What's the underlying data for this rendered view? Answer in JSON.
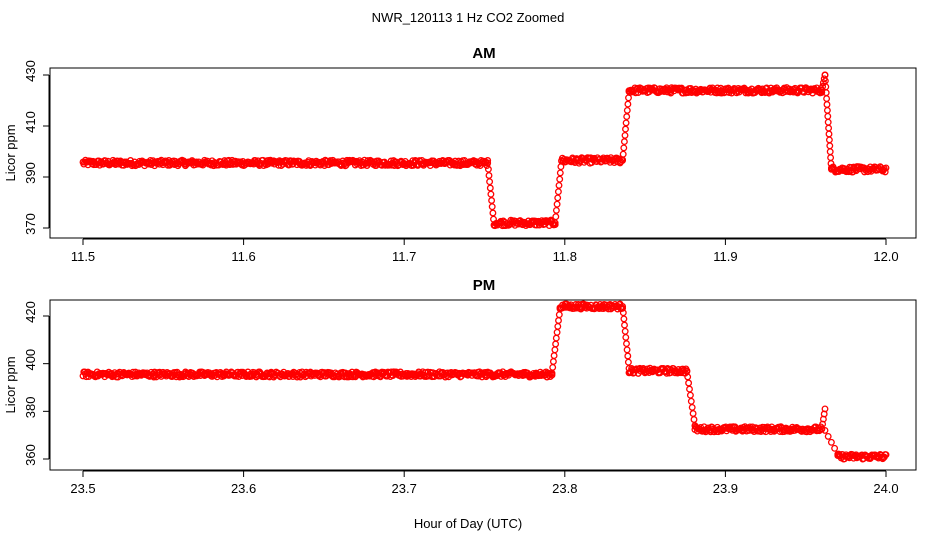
{
  "chart_data": {
    "type": "scatter",
    "title": "NWR_120113  1 Hz CO2 Zoomed",
    "xlabel": "Hour of Day (UTC)",
    "marker": "open circle",
    "series_color": "#ff0000",
    "panels": [
      {
        "title": "AM",
        "ylabel": "Licor ppm",
        "xlim": [
          11.5,
          12.0
        ],
        "ylim": [
          368,
          431
        ],
        "xticks": [
          "11.5",
          "11.6",
          "11.7",
          "11.8",
          "11.9",
          "12.0"
        ],
        "yticks": [
          "370",
          "390",
          "410",
          "430"
        ],
        "segments": [
          {
            "x0": 11.5,
            "x1": 11.752,
            "y0": 395.5,
            "y1": 395.5
          },
          {
            "x0": 11.752,
            "x1": 11.756,
            "y0": 395.5,
            "y1": 371
          },
          {
            "x0": 11.756,
            "x1": 11.794,
            "y0": 372,
            "y1": 372
          },
          {
            "x0": 11.794,
            "x1": 11.798,
            "y0": 372,
            "y1": 396.5
          },
          {
            "x0": 11.798,
            "x1": 11.836,
            "y0": 396.5,
            "y1": 396.5
          },
          {
            "x0": 11.836,
            "x1": 11.84,
            "y0": 396.5,
            "y1": 423.5
          },
          {
            "x0": 11.84,
            "x1": 11.96,
            "y0": 424,
            "y1": 424
          },
          {
            "x0": 11.96,
            "x1": 11.962,
            "y0": 424,
            "y1": 430
          },
          {
            "x0": 11.962,
            "x1": 11.966,
            "y0": 430,
            "y1": 393
          },
          {
            "x0": 11.966,
            "x1": 12.0,
            "y0": 393,
            "y1": 393
          }
        ]
      },
      {
        "title": "PM",
        "ylabel": "Licor ppm",
        "xlim": [
          23.5,
          24.0
        ],
        "ylim": [
          357,
          429
        ],
        "xticks": [
          "23.5",
          "23.6",
          "23.7",
          "23.8",
          "23.9",
          "24.0"
        ],
        "yticks": [
          "360",
          "380",
          "400",
          "420"
        ],
        "segments": [
          {
            "x0": 23.5,
            "x1": 23.792,
            "y0": 395.5,
            "y1": 395.5
          },
          {
            "x0": 23.792,
            "x1": 23.797,
            "y0": 396,
            "y1": 423
          },
          {
            "x0": 23.797,
            "x1": 23.836,
            "y0": 424,
            "y1": 424
          },
          {
            "x0": 23.836,
            "x1": 23.84,
            "y0": 424,
            "y1": 398
          },
          {
            "x0": 23.84,
            "x1": 23.876,
            "y0": 397,
            "y1": 397
          },
          {
            "x0": 23.876,
            "x1": 23.881,
            "y0": 397,
            "y1": 374
          },
          {
            "x0": 23.881,
            "x1": 23.96,
            "y0": 372.5,
            "y1": 372.5
          },
          {
            "x0": 23.96,
            "x1": 23.962,
            "y0": 372.5,
            "y1": 381
          },
          {
            "x0": 23.962,
            "x1": 23.97,
            "y0": 372,
            "y1": 362
          },
          {
            "x0": 23.97,
            "x1": 24.0,
            "y0": 361,
            "y1": 361
          }
        ]
      }
    ]
  }
}
